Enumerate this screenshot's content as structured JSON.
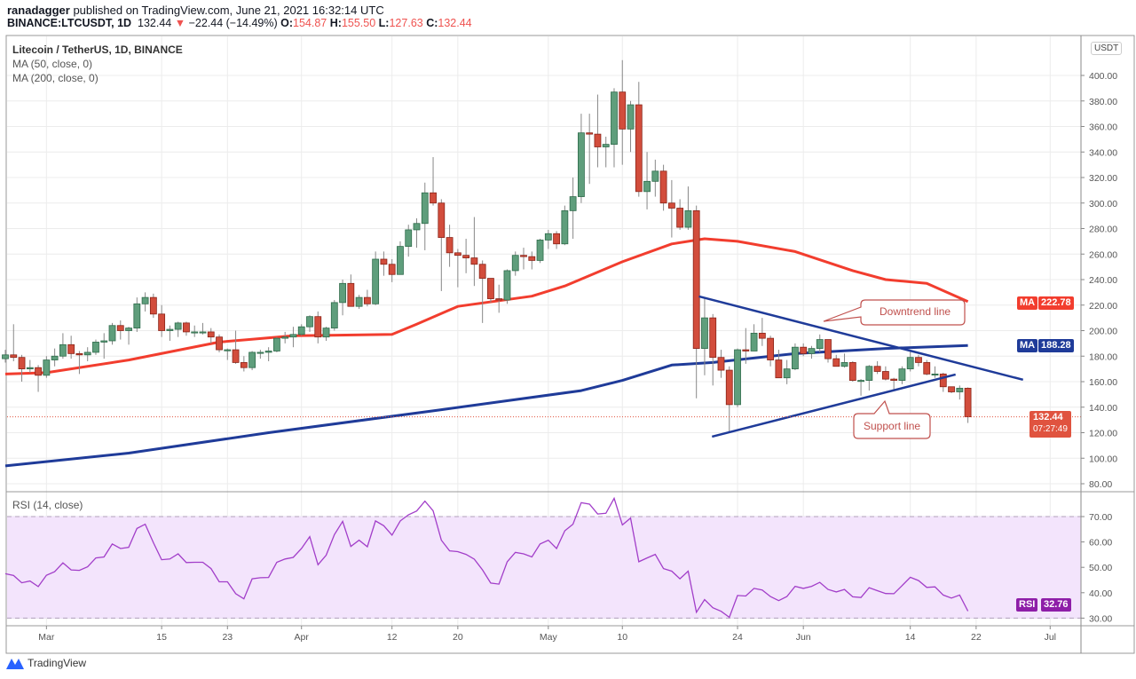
{
  "header": {
    "author": "ranadagger",
    "published": "published on TradingView.com, June 21, 2021 16:32:14 UTC",
    "symbol": "BINANCE:LTCUSDT, 1D",
    "last": "132.44",
    "change": "−22.44 (−14.49%)",
    "o_label": "O:",
    "o": "154.87",
    "h_label": "H:",
    "h": "155.50",
    "l_label": "L:",
    "l": "127.63",
    "c_label": "C:",
    "c": "132.44"
  },
  "legend": {
    "title": "Litecoin / TetherUS, 1D, BINANCE",
    "ma50": "MA (50, close, 0)",
    "ma200": "MA (200, close, 0)",
    "rsi": "RSI (14, close)"
  },
  "price_tags": {
    "currency": "USDT",
    "ma50_label": "MA",
    "ma50_value": "222.78",
    "ma200_label": "MA",
    "ma200_value": "188.28",
    "last_value": "132.44",
    "countdown": "07:27:49",
    "rsi_label": "RSI",
    "rsi_value": "32.76"
  },
  "annotations": {
    "downtrend": "Downtrend line",
    "support": "Support line"
  },
  "branding": "TradingView",
  "colors": {
    "up": "#5f9e7c",
    "down": "#d24d3c",
    "ma50": "#f23d2e",
    "ma200": "#1f3b99",
    "rsi": "#a23ec9",
    "annotation": "#c0504d",
    "last": "#e0533f"
  },
  "chart_data": {
    "type": "candlestick",
    "title": "Litecoin / TetherUS, 1D, BINANCE",
    "ylim": [
      80,
      410
    ],
    "y_ticks": [
      "400.00",
      "380.00",
      "360.00",
      "340.00",
      "320.00",
      "300.00",
      "280.00",
      "260.00",
      "240.00",
      "220.00",
      "200.00",
      "180.00",
      "160.00",
      "140.00",
      "120.00",
      "100.00",
      "80.00"
    ],
    "x_ticks": [
      [
        "Mar",
        5
      ],
      [
        "15",
        19
      ],
      [
        "23",
        27
      ],
      [
        "Apr",
        36
      ],
      [
        "12",
        47
      ],
      [
        "20",
        55
      ],
      [
        "May",
        66
      ],
      [
        "10",
        75
      ],
      [
        "24",
        89
      ],
      [
        "Jun",
        97
      ],
      [
        "14",
        110
      ],
      [
        "22",
        118
      ],
      [
        "Jul",
        127
      ]
    ],
    "candles_ohlc": [
      [
        178,
        185,
        175,
        181
      ],
      [
        181,
        205,
        176,
        179
      ],
      [
        179,
        181,
        160,
        170
      ],
      [
        170,
        177,
        167,
        171
      ],
      [
        171,
        173,
        152,
        165
      ],
      [
        165,
        180,
        163,
        177
      ],
      [
        177,
        186,
        172,
        180
      ],
      [
        180,
        198,
        178,
        189
      ],
      [
        189,
        196,
        178,
        182
      ],
      [
        182,
        184,
        166,
        181
      ],
      [
        181,
        187,
        176,
        183
      ],
      [
        183,
        193,
        181,
        191
      ],
      [
        191,
        198,
        178,
        192
      ],
      [
        192,
        206,
        189,
        204
      ],
      [
        204,
        208,
        193,
        200
      ],
      [
        200,
        203,
        189,
        202
      ],
      [
        202,
        226,
        199,
        221
      ],
      [
        221,
        230,
        215,
        226
      ],
      [
        226,
        229,
        210,
        213
      ],
      [
        213,
        220,
        195,
        200
      ],
      [
        200,
        204,
        192,
        201
      ],
      [
        201,
        207,
        195,
        206
      ],
      [
        206,
        207,
        196,
        199
      ],
      [
        199,
        204,
        195,
        199
      ],
      [
        199,
        206,
        197,
        199
      ],
      [
        199,
        202,
        190,
        195
      ],
      [
        195,
        197,
        183,
        185
      ],
      [
        185,
        186,
        177,
        185
      ],
      [
        185,
        200,
        174,
        175
      ],
      [
        175,
        180,
        168,
        171
      ],
      [
        171,
        184,
        169,
        183
      ],
      [
        183,
        185,
        178,
        183
      ],
      [
        183,
        187,
        176,
        184
      ],
      [
        184,
        195,
        183,
        194
      ],
      [
        194,
        199,
        190,
        195
      ],
      [
        195,
        203,
        187,
        197
      ],
      [
        197,
        205,
        196,
        203
      ],
      [
        203,
        212,
        199,
        211
      ],
      [
        211,
        215,
        190,
        195
      ],
      [
        195,
        203,
        192,
        202
      ],
      [
        202,
        224,
        200,
        222
      ],
      [
        222,
        240,
        212,
        237
      ],
      [
        237,
        244,
        219,
        219
      ],
      [
        219,
        228,
        217,
        226
      ],
      [
        226,
        232,
        219,
        221
      ],
      [
        221,
        262,
        220,
        256
      ],
      [
        256,
        262,
        243,
        252
      ],
      [
        252,
        256,
        238,
        244
      ],
      [
        244,
        270,
        244,
        266
      ],
      [
        266,
        283,
        258,
        279
      ],
      [
        279,
        288,
        265,
        284
      ],
      [
        284,
        316,
        263,
        308
      ],
      [
        308,
        336,
        298,
        300
      ],
      [
        300,
        303,
        231,
        273
      ],
      [
        273,
        283,
        250,
        261
      ],
      [
        261,
        264,
        234,
        259
      ],
      [
        259,
        272,
        245,
        257
      ],
      [
        257,
        289,
        235,
        252
      ],
      [
        252,
        255,
        206,
        241
      ],
      [
        241,
        241,
        222,
        225
      ],
      [
        225,
        236,
        214,
        224
      ],
      [
        224,
        248,
        221,
        247
      ],
      [
        247,
        262,
        243,
        259
      ],
      [
        259,
        265,
        248,
        258
      ],
      [
        258,
        262,
        248,
        255
      ],
      [
        255,
        272,
        253,
        271
      ],
      [
        271,
        279,
        264,
        276
      ],
      [
        276,
        278,
        264,
        268
      ],
      [
        268,
        298,
        267,
        294
      ],
      [
        294,
        320,
        272,
        305
      ],
      [
        305,
        370,
        300,
        355
      ],
      [
        355,
        370,
        315,
        354
      ],
      [
        354,
        385,
        328,
        344
      ],
      [
        344,
        352,
        328,
        346
      ],
      [
        346,
        390,
        328,
        387
      ],
      [
        387,
        412,
        330,
        358
      ],
      [
        358,
        380,
        340,
        377
      ],
      [
        377,
        395,
        305,
        309
      ],
      [
        309,
        340,
        295,
        317
      ],
      [
        317,
        334,
        305,
        325
      ],
      [
        325,
        330,
        294,
        300
      ],
      [
        300,
        318,
        273,
        296
      ],
      [
        296,
        303,
        279,
        281
      ],
      [
        281,
        313,
        279,
        294
      ],
      [
        294,
        298,
        147,
        186
      ],
      [
        186,
        225,
        165,
        210
      ],
      [
        210,
        213,
        157,
        179
      ],
      [
        179,
        185,
        163,
        169
      ],
      [
        169,
        172,
        120,
        142
      ],
      [
        142,
        186,
        140,
        185
      ],
      [
        185,
        202,
        174,
        184
      ],
      [
        184,
        205,
        184,
        198
      ],
      [
        198,
        210,
        188,
        194
      ],
      [
        194,
        196,
        172,
        177
      ],
      [
        177,
        185,
        163,
        163
      ],
      [
        163,
        177,
        158,
        170
      ],
      [
        170,
        190,
        169,
        187
      ],
      [
        187,
        190,
        180,
        182
      ],
      [
        182,
        188,
        178,
        186
      ],
      [
        186,
        197,
        183,
        193
      ],
      [
        193,
        193,
        175,
        178
      ],
      [
        178,
        181,
        172,
        172
      ],
      [
        172,
        182,
        171,
        175
      ],
      [
        175,
        176,
        160,
        161
      ],
      [
        161,
        162,
        149,
        161
      ],
      [
        161,
        173,
        153,
        172
      ],
      [
        172,
        176,
        166,
        168
      ],
      [
        168,
        172,
        161,
        162
      ],
      [
        162,
        163,
        154,
        161
      ],
      [
        161,
        172,
        158,
        170
      ],
      [
        170,
        184,
        168,
        179
      ],
      [
        179,
        181,
        172,
        175
      ],
      [
        175,
        177,
        165,
        166
      ],
      [
        166,
        172,
        163,
        166
      ],
      [
        166,
        167,
        152,
        156
      ],
      [
        156,
        156,
        151,
        152
      ],
      [
        152,
        157,
        146,
        154.87
      ],
      [
        154.87,
        155.5,
        127.63,
        132.44
      ]
    ],
    "ma50_knots": [
      [
        0,
        166
      ],
      [
        5,
        167
      ],
      [
        15,
        177
      ],
      [
        26,
        191
      ],
      [
        35,
        196
      ],
      [
        47,
        197
      ],
      [
        50,
        205
      ],
      [
        55,
        219
      ],
      [
        64,
        227
      ],
      [
        68,
        235
      ],
      [
        75,
        254
      ],
      [
        81,
        268
      ],
      [
        85,
        272
      ],
      [
        89,
        270
      ],
      [
        96,
        262
      ],
      [
        103,
        247
      ],
      [
        107,
        240
      ],
      [
        112,
        237
      ],
      [
        117,
        222.78
      ]
    ],
    "ma200_knots": [
      [
        0,
        94
      ],
      [
        15,
        104
      ],
      [
        32,
        120
      ],
      [
        53,
        138
      ],
      [
        70,
        153
      ],
      [
        75,
        161
      ],
      [
        81,
        173
      ],
      [
        86,
        175
      ],
      [
        96,
        182
      ],
      [
        107,
        186
      ],
      [
        117,
        188.28
      ]
    ],
    "trendlines": {
      "downtrend": [
        [
          84.3,
          226.8
        ],
        [
          123.7,
          161.5
        ]
      ],
      "support": [
        [
          85.9,
          116.9
        ],
        [
          115.5,
          165.6
        ]
      ]
    },
    "rsi": {
      "ylim": [
        30,
        70
      ],
      "band": [
        30,
        70
      ],
      "y_ticks": [
        "70.00",
        "60.00",
        "50.00",
        "40.00",
        "30.00"
      ],
      "values": [
        47.5,
        46.8,
        43.9,
        44.6,
        42.4,
        46.9,
        48.3,
        51.8,
        49,
        48.8,
        50.2,
        53.7,
        54.1,
        59.2,
        57.4,
        57.9,
        65.3,
        67,
        59.7,
        53,
        53.3,
        55.3,
        51.9,
        52,
        52,
        49.5,
        44.3,
        44.3,
        39.6,
        37.6,
        45.5,
        45.9,
        46,
        52,
        53.3,
        53.9,
        57.4,
        62.1,
        51,
        54.8,
        62.9,
        68.1,
        58.2,
        60.7,
        58.1,
        68.3,
        66.4,
        62.7,
        68.3,
        70.7,
        72.2,
        76.1,
        72.3,
        60.7,
        56.5,
        56.2,
        55.1,
        53.2,
        49,
        43.8,
        43.4,
        52.2,
        55.9,
        55.3,
        54.1,
        59.2,
        60.7,
        57.4,
        64.4,
        67,
        75.5,
        74.9,
        71,
        71.3,
        77.2,
        66.7,
        69.4,
        52.2,
        53.7,
        55.1,
        49.5,
        48.5,
        45.5,
        48.5,
        32.3,
        37.3,
        34.1,
        32.7,
        30.3,
        38.9,
        38.7,
        41.7,
        41.1,
        38.5,
        36.9,
        38.5,
        42.5,
        41.7,
        42.5,
        44.1,
        41.3,
        40.3,
        41.3,
        38.4,
        38.1,
        42,
        40.8,
        39.7,
        39.6,
        42.8,
        46.1,
        44.8,
        42.1,
        42.3,
        39.1,
        37.9,
        39.1,
        32.76
      ]
    }
  }
}
